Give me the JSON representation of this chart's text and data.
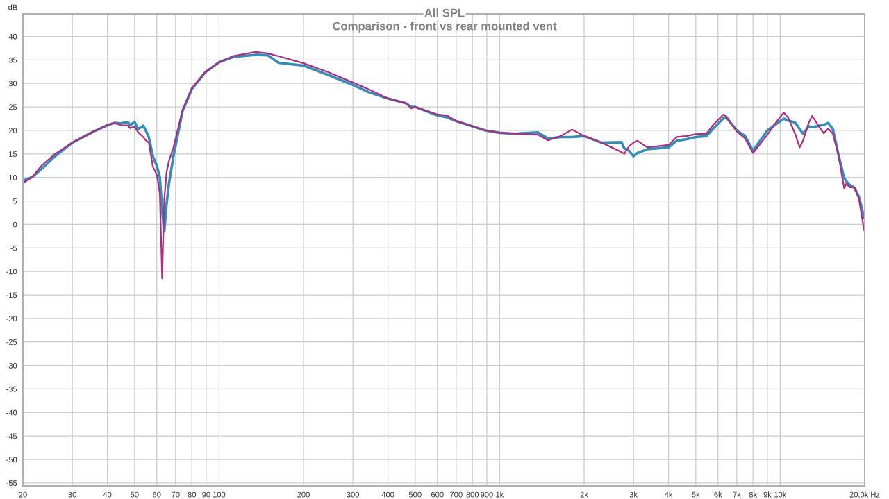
{
  "chart_data": {
    "type": "line",
    "title": "All SPL",
    "subtitle": "Comparison - front vs rear mounted vent",
    "ylabel": "dB",
    "log": "x",
    "grid": true,
    "marker": "none",
    "line_style": "solid",
    "x": [
      20,
      21.6,
      23.3,
      26,
      30,
      35.8,
      40,
      42.3,
      44.8,
      47.3,
      48.2,
      50,
      51.5,
      53.7,
      54.8,
      56.2,
      58.1,
      60,
      61.5,
      62.7,
      63.8,
      65,
      66.3,
      68.8,
      74.1,
      80,
      89.4,
      100,
      112,
      135,
      149,
      163,
      200,
      245,
      300,
      343,
      400,
      463,
      484,
      500,
      600,
      648,
      700,
      890,
      1000,
      1135,
      1368,
      1488,
      1650,
      1811,
      2000,
      2308,
      2720,
      2780,
      2888,
      3000,
      3100,
      3356,
      4000,
      4276,
      4610,
      5000,
      5457,
      5768,
      6274,
      6400,
      7000,
      7494,
      8000,
      9000,
      9740,
      10300,
      10680,
      11300,
      11730,
      12070,
      12650,
      13000,
      13750,
      14300,
      14830,
      15400,
      16100,
      16900,
      17200,
      17700,
      18400,
      19100,
      19900
    ],
    "series": [
      {
        "color": "#2f8fb8",
        "values": [
          9.3,
          10.1,
          11.8,
          14.5,
          17.4,
          19.8,
          21.1,
          21.6,
          21.5,
          21.8,
          21.1,
          21.8,
          20.3,
          21.0,
          20.0,
          18.6,
          14.5,
          12.5,
          10.1,
          2.9,
          -1.5,
          4.3,
          8.7,
          14.5,
          24.1,
          28.8,
          32.4,
          34.5,
          35.6,
          36.1,
          36.0,
          34.4,
          33.8,
          31.8,
          29.7,
          28.1,
          26.8,
          25.8,
          25.0,
          25.0,
          23.2,
          22.8,
          22.0,
          20.0,
          19.5,
          19.3,
          19.6,
          18.3,
          18.6,
          18.6,
          18.8,
          17.4,
          17.5,
          16.2,
          15.7,
          14.5,
          15.2,
          16.0,
          16.4,
          17.8,
          18.1,
          18.6,
          18.8,
          20.4,
          22.6,
          22.9,
          20.0,
          18.8,
          15.7,
          20.0,
          21.5,
          22.5,
          22.1,
          21.7,
          20.3,
          19.3,
          20.9,
          20.7,
          21.0,
          21.2,
          21.6,
          20.3,
          15.0,
          9.9,
          9.2,
          8.4,
          7.8,
          5.8,
          1.4
        ]
      },
      {
        "color": "#b02a80",
        "values": [
          8.8,
          10.1,
          12.5,
          15.0,
          17.4,
          19.8,
          21.1,
          21.6,
          21.1,
          21.1,
          20.5,
          20.8,
          19.6,
          18.6,
          17.9,
          17.4,
          12.3,
          10.6,
          6.7,
          -11.5,
          5.3,
          11.1,
          13.5,
          16.4,
          24.3,
          29.0,
          32.4,
          34.5,
          35.8,
          36.7,
          36.4,
          35.8,
          34.3,
          32.4,
          30.2,
          28.7,
          26.8,
          25.8,
          24.7,
          25.0,
          23.4,
          23.2,
          22.0,
          20.0,
          19.5,
          19.3,
          19.1,
          17.9,
          18.8,
          20.2,
          18.8,
          17.4,
          15.4,
          15.0,
          16.6,
          17.4,
          17.8,
          16.4,
          16.9,
          18.6,
          18.8,
          19.2,
          19.3,
          21.2,
          23.4,
          23.1,
          19.8,
          18.3,
          15.2,
          19.1,
          22.0,
          23.8,
          22.7,
          19.3,
          16.4,
          17.9,
          21.7,
          23.1,
          20.8,
          19.4,
          20.4,
          19.3,
          15.0,
          7.7,
          8.7,
          7.9,
          7.9,
          5.3,
          -1.2
        ]
      }
    ],
    "xlim": [
      20,
      20000
    ],
    "ylim": [
      -55.6,
      44.8
    ],
    "xticks": [
      20,
      30,
      40,
      50,
      60,
      70,
      80,
      90,
      100,
      200,
      300,
      400,
      500,
      600,
      700,
      800,
      900,
      {
        "value": 1000,
        "label": "1k"
      },
      {
        "value": 2000,
        "label": "2k"
      },
      {
        "value": 3000,
        "label": "3k"
      },
      {
        "value": 4000,
        "label": "4k"
      },
      {
        "value": 5000,
        "label": "5k"
      },
      {
        "value": 6000,
        "label": "6k"
      },
      {
        "value": 7000,
        "label": "7k"
      },
      {
        "value": 8000,
        "label": "8k"
      },
      {
        "value": 9000,
        "label": "9k"
      },
      {
        "value": 10000,
        "label": "10k"
      },
      {
        "value": 20000,
        "label": "20,0k Hz"
      }
    ],
    "yticks": [
      -55,
      -50,
      -45,
      -40,
      -35,
      -30,
      -25,
      -20,
      -15,
      -10,
      -5,
      0,
      5,
      10,
      15,
      20,
      25,
      30,
      35,
      40
    ]
  }
}
